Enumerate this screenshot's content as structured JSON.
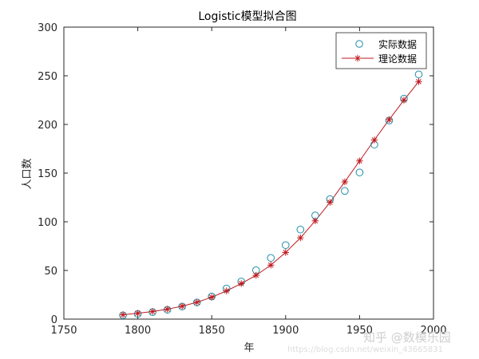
{
  "chart_data": {
    "type": "line",
    "title": "Logistic模型拟合图",
    "xlabel": "年",
    "ylabel": "人口数",
    "xlim": [
      1750,
      2000
    ],
    "ylim": [
      0,
      300
    ],
    "xticks": [
      "1750",
      "1800",
      "1850",
      "1900",
      "1950",
      "2000"
    ],
    "yticks": [
      "0",
      "50",
      "100",
      "150",
      "200",
      "250",
      "300"
    ],
    "grid": false,
    "legend_position": "top-right",
    "x": [
      1790,
      1800,
      1810,
      1820,
      1830,
      1840,
      1850,
      1860,
      1870,
      1880,
      1890,
      1900,
      1910,
      1920,
      1930,
      1940,
      1950,
      1960,
      1970,
      1980,
      1990
    ],
    "series": [
      {
        "name": "实际数据",
        "marker": "circle",
        "color": "#1f8fa8",
        "values": [
          3.9,
          5.3,
          7.2,
          9.6,
          12.9,
          17.1,
          23.2,
          31.4,
          38.6,
          50.2,
          62.9,
          76.0,
          92.0,
          106.5,
          123.2,
          131.7,
          150.7,
          179.3,
          204.0,
          226.5,
          251.4
        ]
      },
      {
        "name": "理论数据",
        "marker": "asterisk",
        "color": "#c0181d",
        "values": [
          4.5,
          6.0,
          7.8,
          10.2,
          13.3,
          17.3,
          22.5,
          29.0,
          36.5,
          45.0,
          55.5,
          68.5,
          83.5,
          101.0,
          120.0,
          141.0,
          162.5,
          184.0,
          205.0,
          225.0,
          244.0
        ]
      }
    ]
  },
  "watermark": {
    "zhihu": "知乎 @数模乐园",
    "url": "https://blog.csdn.net/weixin_43665831"
  }
}
